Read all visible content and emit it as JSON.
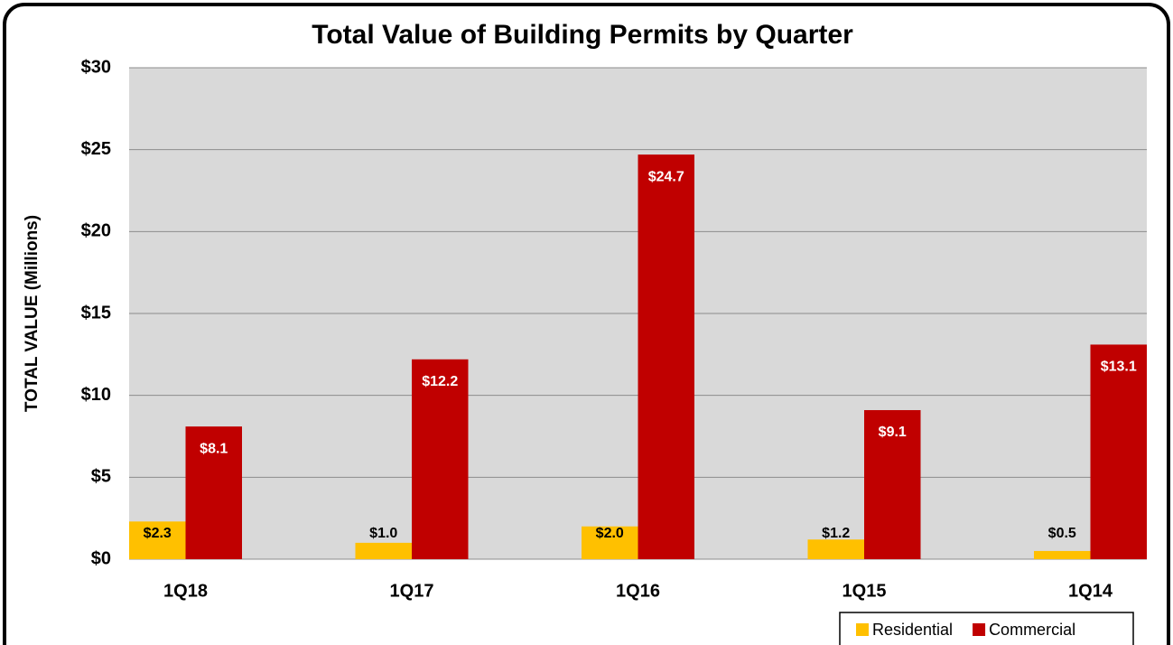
{
  "chart_data": {
    "type": "bar",
    "title": "Total Value of Building Permits by Quarter",
    "y_label": "TOTAL VALUE (Millions)",
    "categories": [
      "1Q18",
      "1Q17",
      "1Q16",
      "1Q15",
      "1Q14"
    ],
    "series": [
      {
        "name": "Residential",
        "color": "#ffc000",
        "values": [
          2.3,
          1.0,
          2.0,
          1.2,
          0.5
        ],
        "value_labels": [
          "$2.3",
          "$1.0",
          "$2.0",
          "$1.2",
          "$0.5"
        ]
      },
      {
        "name": "Commercial",
        "color": "#c00000",
        "values": [
          8.1,
          12.2,
          24.7,
          9.1,
          13.1
        ],
        "value_labels": [
          "$8.1",
          "$12.2",
          "$24.7",
          "$9.1",
          "$13.1"
        ]
      }
    ],
    "ylim": [
      0,
      30
    ],
    "yticks": [
      {
        "value": 0,
        "label": "$0"
      },
      {
        "value": 5,
        "label": "$5"
      },
      {
        "value": 10,
        "label": "$10"
      },
      {
        "value": 15,
        "label": "$15"
      },
      {
        "value": 20,
        "label": "$20"
      },
      {
        "value": 25,
        "label": "$25"
      },
      {
        "value": 30,
        "label": "$30"
      }
    ],
    "grid": true,
    "legend": "bottom-right"
  }
}
